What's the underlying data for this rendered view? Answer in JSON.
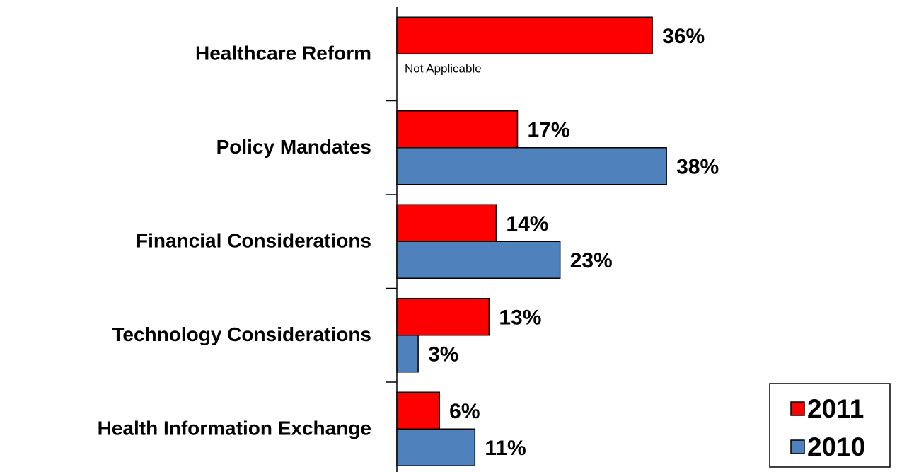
{
  "chart_data": {
    "type": "bar",
    "orientation": "horizontal",
    "categories": [
      "Healthcare Reform",
      "Policy Mandates",
      "Financial Considerations",
      "Technology Considerations",
      "Health Information Exchange"
    ],
    "series": [
      {
        "name": "2011",
        "color": "#ff0000",
        "values": [
          36,
          17,
          14,
          13,
          6
        ],
        "value_labels": [
          "36%",
          "17%",
          "14%",
          "13%",
          "6%"
        ]
      },
      {
        "name": "2010",
        "color": "#4f81bd",
        "values": [
          null,
          38,
          23,
          3,
          11
        ],
        "value_labels": [
          null,
          "38%",
          "23%",
          "3%",
          "11%"
        ]
      }
    ],
    "annotations": [
      "Not Applicable"
    ],
    "legend": "bottom-right"
  }
}
